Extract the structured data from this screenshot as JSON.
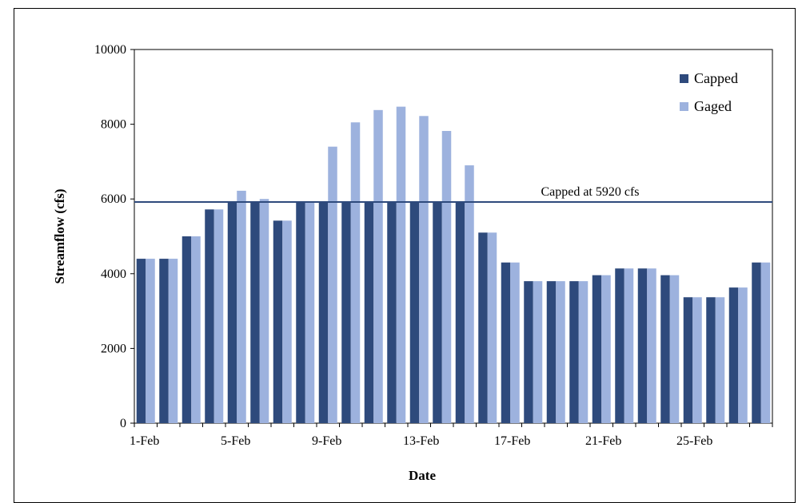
{
  "chart_data": {
    "type": "bar",
    "title": "",
    "xlabel": "Date",
    "ylabel": "Streamflow (cfs)",
    "ylim": [
      0,
      10000
    ],
    "yticks": [
      "0",
      "2000",
      "4000",
      "6000",
      "8000",
      "10000"
    ],
    "categories": [
      "1-Feb",
      "2-Feb",
      "3-Feb",
      "4-Feb",
      "5-Feb",
      "6-Feb",
      "7-Feb",
      "8-Feb",
      "9-Feb",
      "10-Feb",
      "11-Feb",
      "12-Feb",
      "13-Feb",
      "14-Feb",
      "15-Feb",
      "16-Feb",
      "17-Feb",
      "18-Feb",
      "19-Feb",
      "20-Feb",
      "21-Feb",
      "22-Feb",
      "23-Feb",
      "24-Feb",
      "25-Feb",
      "26-Feb",
      "27-Feb",
      "28-Feb"
    ],
    "xtick_labels": [
      "1-Feb",
      "5-Feb",
      "9-Feb",
      "13-Feb",
      "17-Feb",
      "21-Feb",
      "25-Feb"
    ],
    "xtick_indices": [
      0,
      4,
      8,
      12,
      16,
      20,
      24
    ],
    "series": [
      {
        "name": "Capped",
        "color": "#2E4A7C",
        "values": [
          4400,
          4400,
          5000,
          5720,
          5920,
          5920,
          5420,
          5920,
          5920,
          5920,
          5920,
          5920,
          5920,
          5920,
          5920,
          5100,
          4300,
          3800,
          3800,
          3800,
          3960,
          4140,
          4140,
          3960,
          3370,
          3370,
          3630,
          4300
        ]
      },
      {
        "name": "Gaged",
        "color": "#9DB2DE",
        "values": [
          4400,
          4400,
          5000,
          5720,
          6220,
          6000,
          5420,
          5920,
          7400,
          8050,
          8380,
          8470,
          8220,
          7820,
          6900,
          5100,
          4300,
          3800,
          3800,
          3800,
          3960,
          4140,
          4140,
          3960,
          3370,
          3370,
          3630,
          4300
        ]
      }
    ],
    "reference_line": {
      "value": 5920,
      "label": "Capped at 5920 cfs",
      "color": "#2E4A7C"
    },
    "grid": false,
    "legend_position": "top-right"
  }
}
